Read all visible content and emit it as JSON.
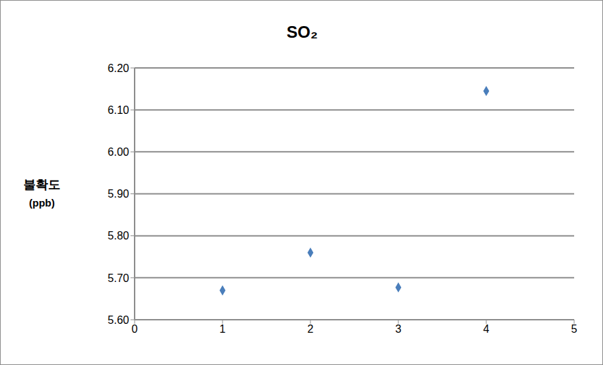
{
  "chart_data": {
    "type": "scatter",
    "title": "SO₂",
    "ylabel": "불확도 (ppb)",
    "x": [
      1,
      2,
      3,
      4
    ],
    "values": [
      5.67,
      5.76,
      5.677,
      6.145
    ],
    "color": "#4a7ebb",
    "marker": "diamond",
    "xlim": [
      0,
      5
    ],
    "xticks": [
      0,
      1,
      2,
      3,
      4,
      5
    ],
    "ylim": [
      5.6,
      6.2
    ],
    "yticks": [
      {
        "value": 5.6,
        "label": "5.60"
      },
      {
        "value": 5.7,
        "label": "5.70"
      },
      {
        "value": 5.8,
        "label": "5.80"
      },
      {
        "value": 5.9,
        "label": "5.90"
      },
      {
        "value": 6.0,
        "label": "6.00"
      },
      {
        "value": 6.1,
        "label": "6.10"
      },
      {
        "value": 6.2,
        "label": "6.20"
      }
    ],
    "grid": true
  }
}
